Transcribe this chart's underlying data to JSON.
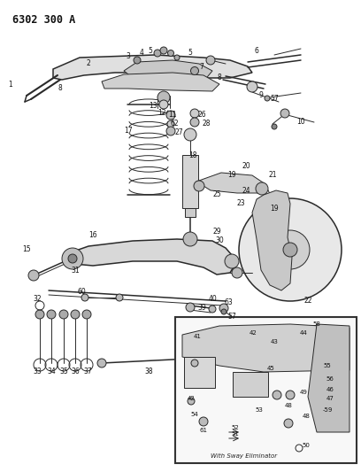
{
  "title": "6302 300 A",
  "bg_color": "#ffffff",
  "lc": "#2a2a2a",
  "figsize": [
    4.08,
    5.33
  ],
  "dpi": 100,
  "inset_label": "With Sway Eliminator"
}
